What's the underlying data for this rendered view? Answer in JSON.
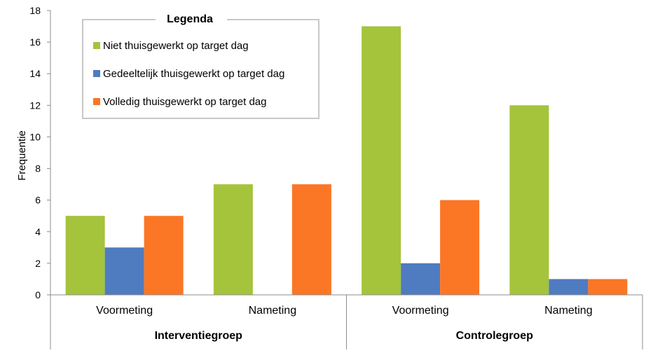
{
  "chart_data": {
    "type": "bar",
    "ylabel": "Frequentie",
    "ylim": [
      0,
      18
    ],
    "yticks": [
      0,
      2,
      4,
      6,
      8,
      10,
      12,
      14,
      16,
      18
    ],
    "grid": false,
    "groups": [
      {
        "label": "Interventiegroep",
        "categories": [
          "Voormeting",
          "Nameting"
        ]
      },
      {
        "label": "Controlegroep",
        "categories": [
          "Voormeting",
          "Nameting"
        ]
      }
    ],
    "series": [
      {
        "name": "Niet thuisgewerkt op target dag",
        "color": "#A5C33B",
        "values": [
          5,
          7,
          17,
          12
        ]
      },
      {
        "name": "Gedeeltelijk thuisgewerkt op target dag",
        "color": "#4F7BC1",
        "values": [
          3,
          0,
          2,
          1
        ]
      },
      {
        "name": "Volledig thuisgewerkt op target dag",
        "color": "#FB7625",
        "values": [
          5,
          7,
          6,
          1
        ]
      }
    ],
    "legend": {
      "title": "Legenda",
      "position": "top-left"
    }
  }
}
